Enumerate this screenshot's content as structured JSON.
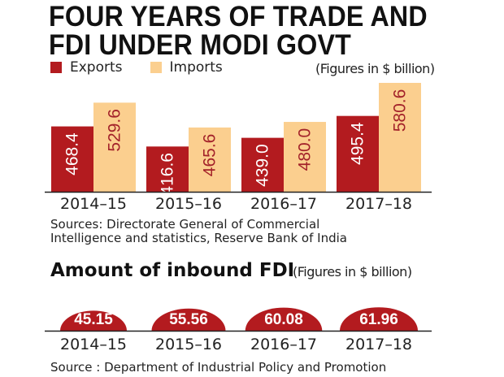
{
  "title_lines": [
    "FOUR YEARS OF TRADE AND",
    "FDI UNDER MODI GOVT"
  ],
  "colors": {
    "exports": "#b31b1f",
    "imports": "#fbcf8f",
    "axis": "#222222"
  },
  "chart_data": [
    {
      "type": "bar",
      "units_note": "(Figures in $ billion)",
      "categories": [
        "2014–15",
        "2015–16",
        "2016–17",
        "2017–18"
      ],
      "series": [
        {
          "name": "Exports",
          "values": [
            468.4,
            416.6,
            439.0,
            495.4
          ],
          "labels": [
            "468.4",
            "416.6",
            "439.0",
            "495.4"
          ]
        },
        {
          "name": "Imports",
          "values": [
            529.6,
            465.6,
            480.0,
            580.6
          ],
          "labels": [
            "529.6",
            "465.6",
            "480.0",
            "580.6"
          ]
        }
      ],
      "source": [
        "Sources: Directorate General of Commercial",
        "Intelligence and statistics, Reserve Bank of India"
      ]
    },
    {
      "type": "bar",
      "title": "Amount of inbound FDI",
      "units_note": "(Figures in $ billion)",
      "categories": [
        "2014–15",
        "2015–16",
        "2016–17",
        "2017–18"
      ],
      "values": [
        45.15,
        55.56,
        60.08,
        61.96
      ],
      "labels": [
        "45.15",
        "55.56",
        "60.08",
        "61.96"
      ],
      "source": "Source : Department of Industrial Policy and Promotion"
    }
  ]
}
